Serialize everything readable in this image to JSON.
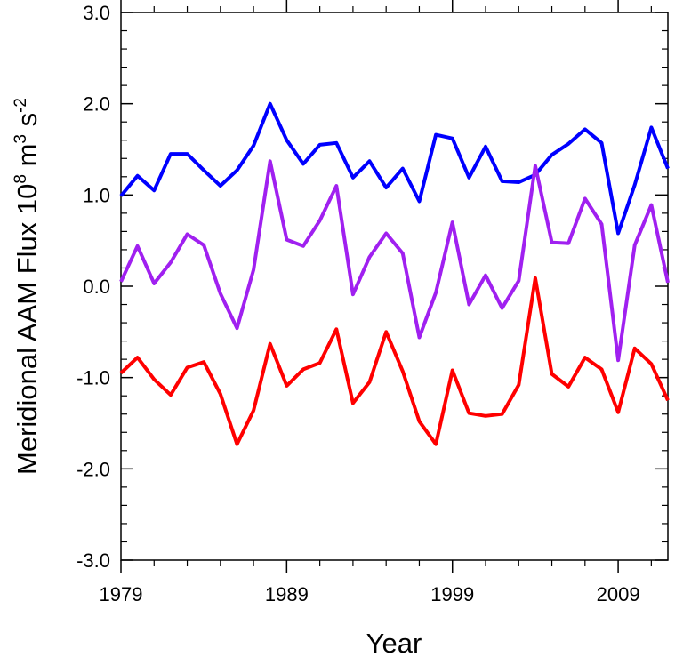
{
  "chart_data": {
    "type": "line",
    "title": "",
    "xlabel": "Year",
    "ylabel": {
      "text": "Meridional AAM Flux 10",
      "exp1": "8",
      "unit1": " m",
      "exp2": "3",
      "unit2": " s",
      "exp3": "-2"
    },
    "xlim": [
      1979,
      2012
    ],
    "ylim": [
      -3.0,
      3.0
    ],
    "x_ticks": [
      1979,
      1989,
      1999,
      2009
    ],
    "x_tick_labels": [
      "1979",
      "1989",
      "1999",
      "2009"
    ],
    "y_ticks": [
      -3.0,
      -2.0,
      -1.0,
      0.0,
      1.0,
      2.0,
      3.0
    ],
    "y_tick_labels": [
      "-3.0",
      "-2.0",
      "-1.0",
      "0.0",
      "1.0",
      "2.0",
      "3.0"
    ],
    "grid": false,
    "x": [
      1979,
      1980,
      1981,
      1982,
      1983,
      1984,
      1985,
      1986,
      1987,
      1988,
      1989,
      1990,
      1991,
      1992,
      1993,
      1994,
      1995,
      1996,
      1997,
      1998,
      1999,
      2000,
      2001,
      2002,
      2003,
      2004,
      2005,
      2006,
      2007,
      2008,
      2009,
      2010,
      2011,
      2012
    ],
    "series": [
      {
        "color": "#0000ff",
        "values": [
          0.99,
          1.21,
          1.05,
          1.45,
          1.45,
          1.27,
          1.1,
          1.27,
          1.54,
          2.0,
          1.6,
          1.34,
          1.55,
          1.57,
          1.19,
          1.37,
          1.08,
          1.29,
          0.93,
          1.66,
          1.62,
          1.19,
          1.53,
          1.15,
          1.14,
          1.22,
          1.44,
          1.56,
          1.72,
          1.57,
          0.58,
          1.11,
          1.74,
          1.29
        ]
      },
      {
        "color": "#a020f0",
        "values": [
          0.05,
          0.44,
          0.03,
          0.26,
          0.57,
          0.45,
          -0.08,
          -0.46,
          0.18,
          1.37,
          0.51,
          0.44,
          0.72,
          1.1,
          -0.09,
          0.32,
          0.58,
          0.36,
          -0.56,
          -0.07,
          0.7,
          -0.2,
          0.12,
          -0.24,
          0.06,
          1.32,
          0.48,
          0.47,
          0.96,
          0.68,
          -0.81,
          0.45,
          0.89,
          0.04
        ]
      },
      {
        "color": "#ff0000",
        "values": [
          -0.95,
          -0.78,
          -1.02,
          -1.19,
          -0.89,
          -0.83,
          -1.18,
          -1.73,
          -1.36,
          -0.63,
          -1.09,
          -0.91,
          -0.84,
          -0.47,
          -1.28,
          -1.05,
          -0.5,
          -0.93,
          -1.48,
          -1.73,
          -0.92,
          -1.39,
          -1.42,
          -1.4,
          -1.08,
          0.09,
          -0.96,
          -1.1,
          -0.78,
          -0.91,
          -1.38,
          -0.68,
          -0.85,
          -1.25
        ]
      }
    ]
  }
}
